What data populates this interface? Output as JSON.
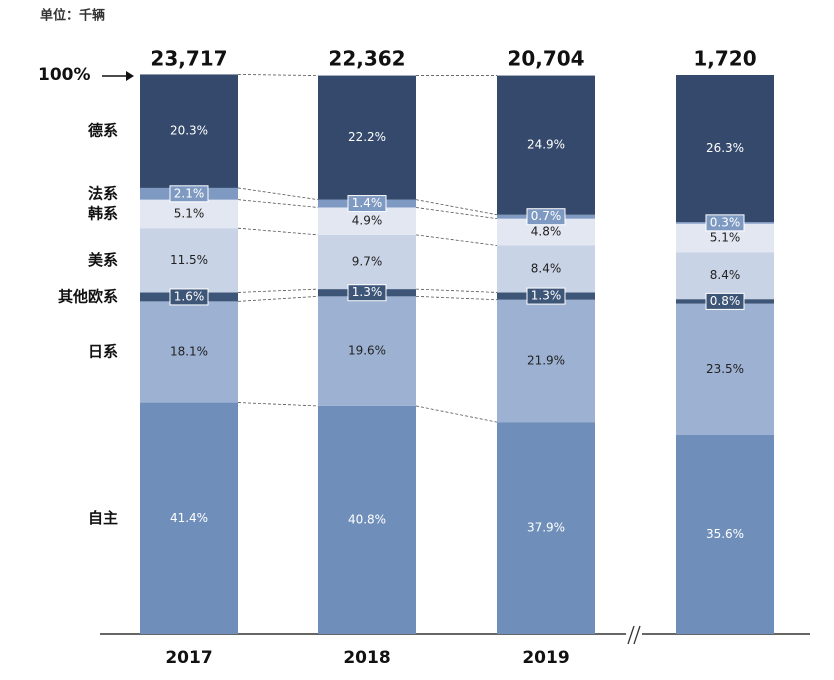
{
  "chart_data": {
    "type": "stacked_bar_100",
    "note": "单位：千辆",
    "categories": [
      "2017",
      "2018",
      "2019",
      null
    ],
    "totals": [
      23717,
      22362,
      20704,
      1720
    ],
    "total_labels": [
      "23,717",
      "22,362",
      "20,704",
      "1,720"
    ],
    "ylim": [
      0,
      100
    ],
    "yticks": [
      {
        "value": 100,
        "label": "100%"
      }
    ],
    "series": [
      {
        "name": "自主",
        "color": "#6f8fba",
        "values": [
          41.4,
          40.8,
          37.9,
          35.6
        ],
        "value_labels": [
          "41.4%",
          "40.8%",
          "37.9%",
          "35.6%"
        ]
      },
      {
        "name": "日系",
        "color": "#9db1d3",
        "values": [
          18.1,
          19.6,
          21.9,
          23.5
        ],
        "value_labels": [
          "18.1%",
          "19.6%",
          "21.9%",
          "23.5%"
        ]
      },
      {
        "name": "其他欧系",
        "color": "#3d5678",
        "values": [
          1.6,
          1.3,
          1.3,
          0.8
        ],
        "value_labels": [
          "1.6%",
          "1.3%",
          "1.3%",
          "0.8%"
        ]
      },
      {
        "name": "美系",
        "color": "#c9d3e6",
        "values": [
          11.5,
          9.7,
          8.4,
          8.4
        ],
        "value_labels": [
          "11.5%",
          "9.7%",
          "8.4%",
          "8.4%"
        ]
      },
      {
        "name": "韩系",
        "color": "#e3e7f1",
        "values": [
          5.1,
          4.9,
          4.8,
          5.1
        ],
        "value_labels": [
          "5.1%",
          "4.9%",
          "4.8%",
          "5.1%"
        ]
      },
      {
        "name": "法系",
        "color": "#7f9ac2",
        "values": [
          2.1,
          1.4,
          0.7,
          0.3
        ],
        "value_labels": [
          "2.1%",
          "1.4%",
          "0.7%",
          "0.3%"
        ]
      },
      {
        "name": "德系",
        "color": "#34496b",
        "values": [
          20.3,
          22.2,
          24.9,
          26.3
        ],
        "value_labels": [
          "20.3%",
          "22.2%",
          "24.9%",
          "26.3%"
        ]
      }
    ]
  }
}
